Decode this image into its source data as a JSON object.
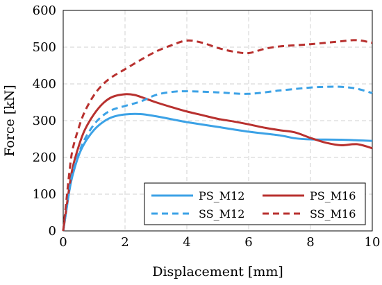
{
  "chart_data": {
    "type": "line",
    "xlabel": "Displacement [mm]",
    "ylabel": "Force [kN]",
    "xlim": [
      0,
      10
    ],
    "ylim": [
      0,
      600
    ],
    "xticks": [
      "0",
      "2",
      "4",
      "6",
      "8",
      "10"
    ],
    "yticks": [
      "0",
      "100",
      "200",
      "300",
      "400",
      "500",
      "600"
    ],
    "grid": true,
    "legend": "bottom-right",
    "series": [
      {
        "name": "PS_M12",
        "color": "#3ca2e6",
        "dash": "solid",
        "x": [
          0,
          0.1,
          0.2,
          0.3,
          0.5,
          0.7,
          1.0,
          1.3,
          1.6,
          2.0,
          2.5,
          3.0,
          3.5,
          4.0,
          5.0,
          6.0,
          7.0,
          7.5,
          8.0,
          9.0,
          10.0
        ],
        "y": [
          0,
          55,
          110,
          150,
          205,
          240,
          275,
          297,
          310,
          317,
          318,
          312,
          304,
          296,
          283,
          270,
          260,
          252,
          249,
          248,
          245
        ]
      },
      {
        "name": "PS_M16",
        "color": "#b8312f",
        "dash": "solid",
        "x": [
          0,
          0.1,
          0.2,
          0.3,
          0.5,
          0.7,
          1.0,
          1.3,
          1.6,
          2.0,
          2.3,
          2.6,
          3.0,
          3.5,
          4.0,
          4.5,
          5.0,
          5.5,
          6.0,
          6.5,
          7.0,
          7.5,
          8.0,
          8.5,
          9.0,
          9.5,
          10.0
        ],
        "y": [
          0,
          60,
          120,
          170,
          230,
          275,
          318,
          348,
          365,
          372,
          370,
          362,
          350,
          337,
          325,
          315,
          305,
          298,
          290,
          281,
          274,
          268,
          253,
          240,
          233,
          236,
          225
        ]
      },
      {
        "name": "SS_M12",
        "color": "#3ca2e6",
        "dash": "dashed",
        "x": [
          0,
          0.1,
          0.2,
          0.3,
          0.5,
          0.7,
          1.0,
          1.3,
          1.6,
          2.0,
          2.5,
          3.0,
          3.5,
          4.0,
          5.0,
          6.0,
          7.0,
          8.0,
          8.5,
          9.0,
          9.5,
          10.0
        ],
        "y": [
          0,
          55,
          110,
          155,
          210,
          250,
          290,
          315,
          330,
          340,
          352,
          370,
          378,
          380,
          377,
          373,
          382,
          390,
          392,
          392,
          387,
          375
        ]
      },
      {
        "name": "SS_M16",
        "color": "#b8312f",
        "dash": "dashed",
        "x": [
          0,
          0.1,
          0.2,
          0.3,
          0.5,
          0.7,
          1.0,
          1.3,
          1.6,
          2.0,
          2.5,
          3.0,
          3.5,
          4.0,
          4.5,
          5.0,
          5.5,
          6.0,
          6.5,
          7.0,
          8.0,
          9.0,
          9.5,
          10.0
        ],
        "y": [
          0,
          80,
          160,
          220,
          280,
          325,
          370,
          400,
          420,
          440,
          465,
          488,
          505,
          518,
          512,
          498,
          488,
          484,
          495,
          502,
          508,
          516,
          519,
          512
        ]
      }
    ]
  }
}
